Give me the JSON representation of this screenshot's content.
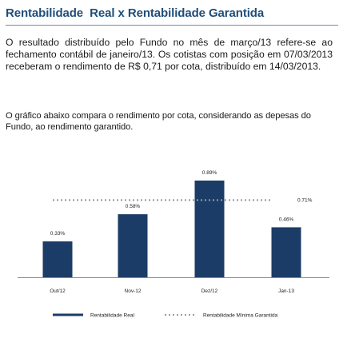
{
  "header": {
    "title": "Rentabilidade  Real x Rentabilidade Garantida"
  },
  "body_text": {
    "paragraph1": "O resultado distribuído pelo Fundo no mês de março/13 refere-se ao fechamento contábil de janeiro/13. Os cotistas com posição em 07/03/2013 receberam o rendimento de R$ 0,71 por cota, distribuído em 14/03/2013.",
    "paragraph2": "O gráfico abaixo compara o rendimento por cota, considerando as depesas do Fundo, ao rendimento garantido."
  },
  "colors": {
    "bar": "#1b3c66",
    "reference_line": "#9a9a9a",
    "title": "#1f4e79"
  },
  "chart_data": {
    "type": "bar",
    "categories": [
      "Out/12",
      "Nov-12",
      "Dez/12",
      "Jan-13"
    ],
    "series": [
      {
        "name": "Rentabilidade Real",
        "values": [
          0.33,
          0.58,
          0.89,
          0.46
        ],
        "data_labels": [
          "0.33%",
          "0.58%",
          "0.89%",
          "0.46%"
        ]
      }
    ],
    "reference_line": {
      "name": "Rentabilidade Mínima Garantida",
      "value": 0.71,
      "label": "0.71%",
      "style": "dotted"
    },
    "title": "",
    "xlabel": "",
    "ylabel": "",
    "ylim": [
      0,
      1.0
    ],
    "grid": false,
    "legend": "bottom"
  }
}
